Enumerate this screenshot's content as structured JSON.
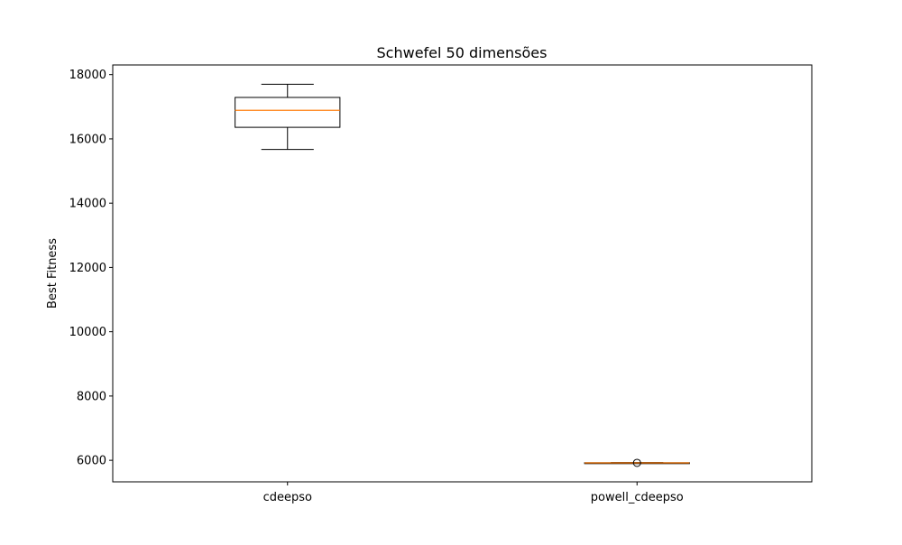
{
  "chart_data": {
    "type": "box",
    "title": "Schwefel 50 dimensões",
    "xlabel": "",
    "ylabel": "Best Fitness",
    "ylim": [
      5330,
      18300
    ],
    "yticks": [
      6000,
      8000,
      10000,
      12000,
      14000,
      16000,
      18000
    ],
    "categories": [
      "cdeepso",
      "powell_cdeepso"
    ],
    "boxes": [
      {
        "label": "cdeepso",
        "whisker_low": 15670,
        "q1": 16360,
        "median": 16890,
        "q3": 17290,
        "whisker_high": 17700,
        "outliers": []
      },
      {
        "label": "powell_cdeepso",
        "whisker_low": 5910,
        "q1": 5915,
        "median": 5920,
        "q3": 5925,
        "whisker_high": 5930,
        "outliers": [
          5920
        ]
      }
    ],
    "colors": {
      "box": "#000000",
      "median": "#ff7f0e",
      "background": "#ffffff"
    },
    "grid": false
  }
}
